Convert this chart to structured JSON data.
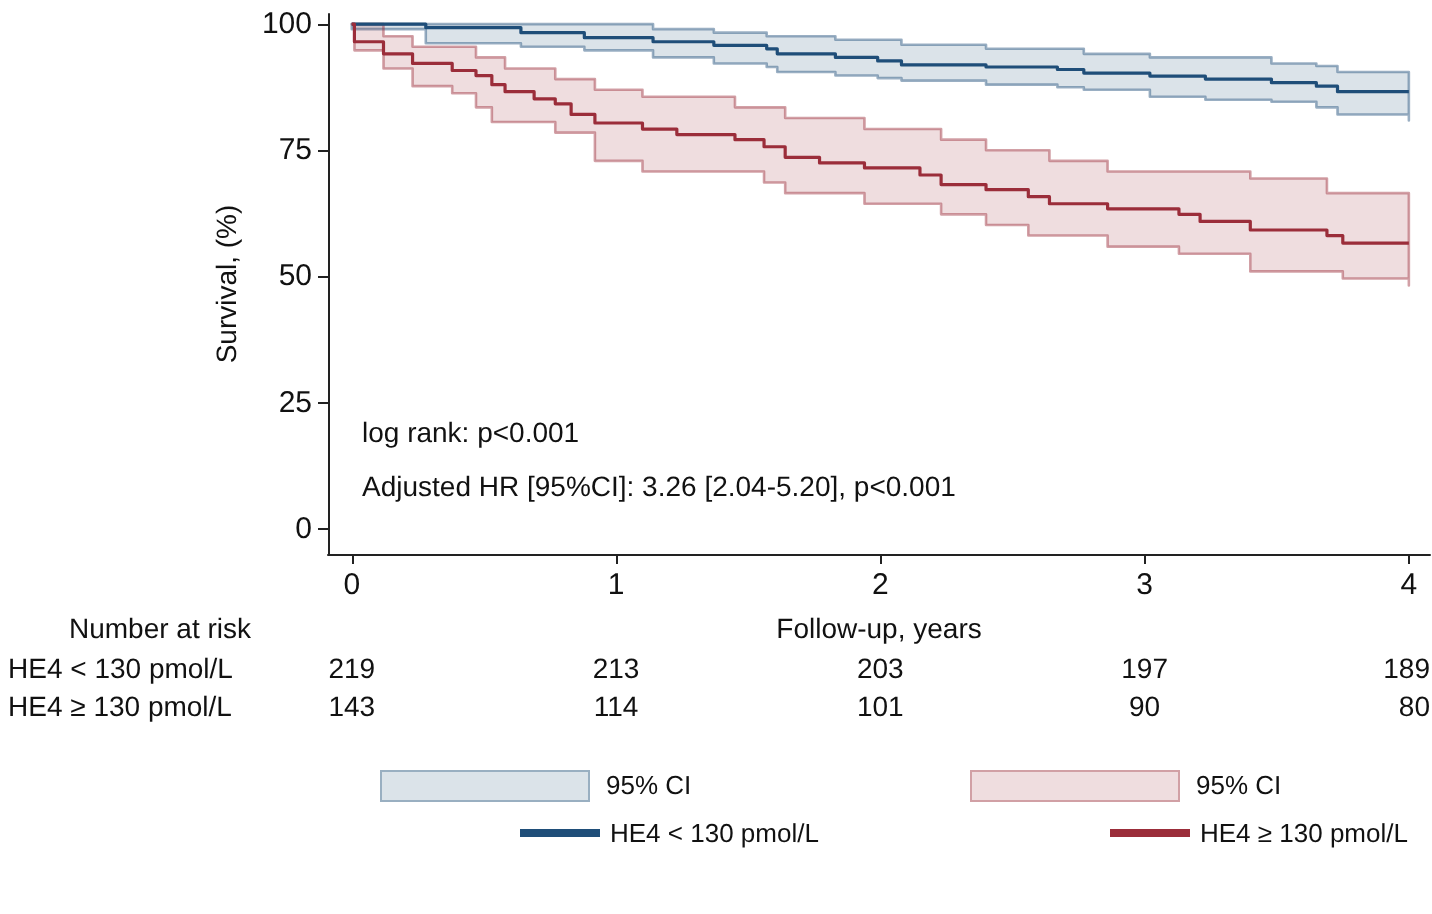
{
  "chart_data": {
    "type": "step",
    "xlabel": "Follow-up, years",
    "ylabel": "Survival, (%)",
    "xlim": [
      -0.09,
      4.08
    ],
    "xticks": [
      0,
      1,
      2,
      3,
      4
    ],
    "ylim": [
      -5,
      102
    ],
    "yticks": [
      0,
      25,
      50,
      75,
      100
    ],
    "grid": false,
    "legend": "bottom",
    "marker": "none",
    "line_style": "solid",
    "series": [
      {
        "name": "HE4 < 130 pmol/L",
        "color": "#1f4e79",
        "x": [
          0,
          0.28,
          0.64,
          0.88,
          1.14,
          1.37,
          1.57,
          1.61,
          1.83,
          1.99,
          2.08,
          2.4,
          2.67,
          2.77,
          3.02,
          3.23,
          3.48,
          3.65,
          3.73,
          4.0
        ],
        "values": [
          100,
          99.3,
          98.3,
          97.3,
          96.5,
          95.8,
          95.1,
          94.1,
          93.4,
          92.7,
          91.9,
          91.5,
          91.0,
          90.3,
          89.7,
          89.1,
          88.4,
          87.7,
          86.6,
          86.6
        ],
        "upper": [
          100,
          100,
          100,
          100,
          99,
          98.3,
          97.6,
          97.6,
          96.9,
          96.9,
          95.9,
          95.1,
          95.1,
          94.1,
          93.4,
          93.4,
          92.2,
          91.7,
          90.5,
          90.5
        ],
        "lower": [
          99,
          96.2,
          95.5,
          94.8,
          93.4,
          92.2,
          91.5,
          90.5,
          89.8,
          89.3,
          88.8,
          88.0,
          87.5,
          87.0,
          85.6,
          85.0,
          84.6,
          83.5,
          82.1,
          80.9
        ]
      },
      {
        "name": "HE4 ≥ 130 pmol/L",
        "color": "#9b2d3a",
        "x": [
          0,
          0.01,
          0.12,
          0.23,
          0.38,
          0.47,
          0.53,
          0.58,
          0.69,
          0.77,
          0.83,
          0.92,
          1.1,
          1.23,
          1.45,
          1.56,
          1.64,
          1.77,
          1.94,
          2.15,
          2.23,
          2.4,
          2.56,
          2.64,
          2.86,
          3.13,
          3.21,
          3.4,
          3.69,
          3.75,
          4.0
        ],
        "values": [
          100,
          96.5,
          94.1,
          92.2,
          90.8,
          89.8,
          88,
          86.6,
          85.2,
          84.2,
          82.1,
          80.4,
          79.2,
          78.1,
          77.1,
          75.7,
          73.6,
          72.5,
          71.5,
          70.1,
          68.2,
          67.2,
          65.8,
          64.4,
          63.4,
          62.3,
          60.9,
          59.2,
          58.1,
          56.6,
          56.6
        ],
        "upper": [
          100,
          100,
          97.6,
          95.5,
          95.5,
          93.4,
          93.4,
          91.2,
          91.2,
          89.1,
          89.1,
          87,
          85.6,
          85.6,
          83.5,
          83.5,
          81.4,
          81.4,
          79.2,
          79.2,
          77.1,
          75,
          75,
          72.9,
          70.8,
          70.8,
          70.8,
          69.4,
          66.5,
          66.5,
          64.4
        ],
        "lower": [
          100,
          94.8,
          91.2,
          87.7,
          86.3,
          83.5,
          80.6,
          80.6,
          80.6,
          78.5,
          78.5,
          72.9,
          70.8,
          70.8,
          70.8,
          68.6,
          66.5,
          66.5,
          64.4,
          64.4,
          62.3,
          60.2,
          58.1,
          58.1,
          55.9,
          54.5,
          54.5,
          51,
          51,
          49.6,
          48.2
        ]
      }
    ],
    "annotations": [
      "log rank: p<0.001",
      "Adjusted HR [95%CI]: 3.26 [2.04-5.20], p<0.001",
      "Number at risk",
      "HE4 < 130 pmol/L",
      "219",
      "213",
      "203",
      "197",
      "189",
      "HE4 ≥ 130 pmol/L",
      "143",
      "114",
      "101",
      "90",
      "80",
      "95% CI",
      "95% CI"
    ]
  }
}
